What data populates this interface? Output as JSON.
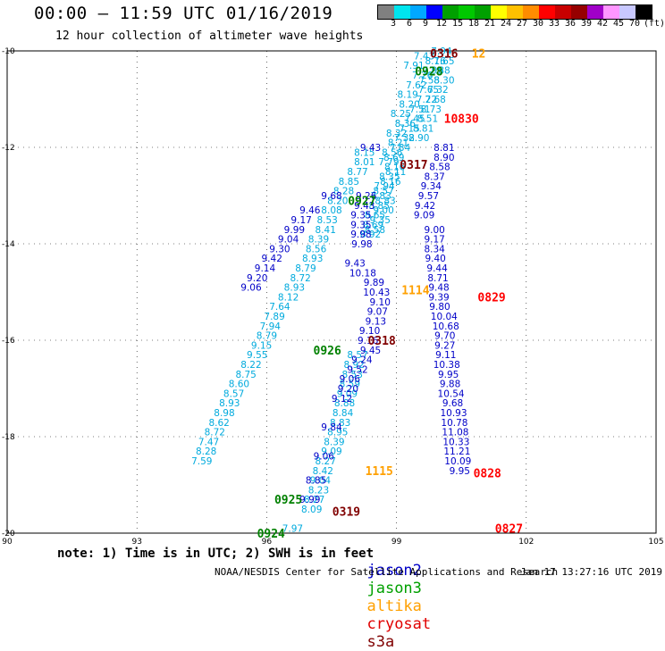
{
  "header": {
    "title": "00:00 – 11:59 UTC 01/16/2019",
    "subtitle": "12 hour collection of altimeter wave heights"
  },
  "colorbar": {
    "colors": [
      "#808080",
      "#00e5ee",
      "#00a8ff",
      "#0000ff",
      "#00a000",
      "#00c800",
      "#00a000",
      "#ffff00",
      "#ffc000",
      "#ff8c00",
      "#ff0000",
      "#c80000",
      "#960000",
      "#a000c8",
      "#ff96ff",
      "#c8c8ff",
      "#000000"
    ],
    "labels": [
      "3",
      "6",
      "9",
      "12",
      "15",
      "18",
      "21",
      "24",
      "27",
      "30",
      "33",
      "36",
      "39",
      "42",
      "45",
      "70",
      "(ft)"
    ]
  },
  "legend": {
    "note": "note: 1) Time is in UTC; 2) SWH is in feet",
    "satellites": [
      {
        "name": "jason2",
        "color": "#0000c8"
      },
      {
        "name": "jason3",
        "color": "#00a000"
      },
      {
        "name": "altika",
        "color": "#ffa000"
      },
      {
        "name": "cryosat",
        "color": "#e00000"
      },
      {
        "name": "s3a",
        "color": "#800000"
      }
    ]
  },
  "footer": {
    "credit": "NOAA/NESDIS Center for Satellite Applications and Research",
    "timestamp": "Jan 17 13:27:16 UTC 2019"
  },
  "chart_data": {
    "type": "scatter",
    "xlim": [
      90,
      105
    ],
    "ylim": [
      -20,
      -10
    ],
    "xticks": [
      90,
      93,
      96,
      99,
      102,
      105
    ],
    "yticks": [
      -10,
      -12,
      -14,
      -16,
      -18,
      -20
    ],
    "xtick_labels": [
      "90",
      "93",
      "96",
      "99",
      "102",
      "105"
    ],
    "ytick_labels": [
      "-10",
      "-12",
      "-14",
      "-16",
      "-18",
      "-20"
    ],
    "grid": "dotted",
    "colors": {
      "light": "#00aadd",
      "dark": "#0000c8",
      "jason3": "#008000",
      "altika": "#ffa000",
      "cryosat": "#ff0000",
      "s3a": "#800000"
    },
    "tracks": [
      {
        "name": "track-a",
        "color": "light",
        "x": [
          96.6,
          97.04,
          97.1,
          97.2,
          97.24,
          97.3,
          97.36,
          97.5,
          97.56,
          97.64,
          97.7,
          97.76,
          97.8,
          97.86,
          97.92,
          97.98,
          98.02,
          98.1
        ],
        "y": [
          -19.9,
          -19.5,
          -19.3,
          -19.1,
          -18.9,
          -18.7,
          -18.5,
          -18.3,
          -18.1,
          -17.9,
          -17.7,
          -17.5,
          -17.3,
          -17.1,
          -16.9,
          -16.7,
          -16.5,
          -16.3
        ],
        "values": [
          "7.97",
          "8.09",
          "8.27",
          "8.23",
          "9.04",
          "8.42",
          "8.27",
          "9.09",
          "8.39",
          "8.95",
          "8.83",
          "8.84",
          "8.88",
          "9.09",
          "8.59",
          "8.53",
          "8.92",
          "8.57"
        ]
      },
      {
        "name": "track-b",
        "color": "light",
        "x": [
          98.26,
          98.26,
          98.1,
          97.9,
          97.78,
          97.64,
          97.5,
          97.4,
          97.36,
          97.2,
          97.14,
          97.06,
          96.9,
          96.78,
          96.64,
          96.5,
          96.3,
          96.18,
          96.08,
          96.0,
          95.88,
          95.78,
          95.64,
          95.52,
          95.36,
          95.24,
          95.14,
          95.02,
          94.9,
          94.8,
          94.66,
          94.6,
          94.5
        ],
        "y": [
          -12.1,
          -12.3,
          -12.5,
          -12.7,
          -12.9,
          -13.1,
          -13.3,
          -13.5,
          -13.7,
          -13.9,
          -14.1,
          -14.3,
          -14.5,
          -14.7,
          -14.9,
          -15.1,
          -15.3,
          -15.5,
          -15.7,
          -15.9,
          -16.1,
          -16.3,
          -16.5,
          -16.7,
          -16.9,
          -17.1,
          -17.3,
          -17.5,
          -17.7,
          -17.9,
          -18.1,
          -18.3,
          -18.5
        ],
        "values": [
          "8.15",
          "8.01",
          "8.77",
          "8.85",
          "8.28",
          "8.20",
          "8.08",
          "8.53",
          "8.41",
          "8.39",
          "8.56",
          "8.93",
          "8.79",
          "8.72",
          "8.93",
          "8.12",
          "7.64",
          "7.89",
          "7.94",
          "8.79",
          "9.15",
          "9.55",
          "8.22",
          "8.75",
          "8.60",
          "8.57",
          "8.93",
          "8.98",
          "8.62",
          "8.72",
          "7.47",
          "8.28",
          "7.59"
        ]
      },
      {
        "name": "track-c",
        "color": "light",
        "x": [
          99.64,
          99.4,
          99.6,
          99.46,
          99.26,
          99.3,
          99.1,
          99.2,
          99.0,
          99.04,
          98.9,
          98.82,
          98.98,
          98.86,
          98.7,
          98.74,
          98.7,
          98.62,
          98.5
        ],
        "y": [
          -10.1,
          -10.3,
          -10.5,
          -10.7,
          -10.9,
          -11.1,
          -11.3,
          -11.5,
          -11.7,
          -11.9,
          -12.1,
          -12.3,
          -12.5,
          -12.7,
          -12.9,
          -13.1,
          -13.3,
          -13.5,
          -13.7
        ],
        "values": [
          "7.43",
          "7.91",
          "7.26",
          "7.62",
          "8.19",
          "8.20",
          "8.25",
          "8.36",
          "8.32",
          "8.21",
          "8.56",
          "7.79",
          "8.11",
          "8.16",
          "8.57",
          "8.83",
          "9.00",
          "9.35",
          "8.58"
        ]
      },
      {
        "name": "track-d",
        "color": "light",
        "x": [
          99.9,
          99.84,
          99.76,
          99.74,
          99.7,
          99.54,
          99.42,
          99.3,
          99.18,
          99.08,
          98.94,
          98.96,
          98.84,
          98.72,
          98.64,
          98.6,
          98.5,
          98.46,
          98.4
        ],
        "y": [
          -10.2,
          -10.4,
          -10.6,
          -10.8,
          -11.0,
          -11.2,
          -11.4,
          -11.6,
          -11.8,
          -12.0,
          -12.2,
          -12.4,
          -12.6,
          -12.8,
          -13.0,
          -13.2,
          -13.4,
          -13.6,
          -13.8
        ],
        "values": [
          "8.16",
          "7.95",
          "7.58",
          "7.65",
          "7.22",
          "7.51",
          "7.45",
          "7.15",
          "7.32",
          "7.84",
          "8.69",
          "8.16",
          "8.35",
          "7.94",
          "7.83",
          "8.85",
          "8.65",
          "8.69",
          "8.92"
        ]
      },
      {
        "name": "track-e",
        "color": "light",
        "x": [
          100.04,
          100.1,
          100.0,
          100.1,
          99.96,
          99.9,
          99.8,
          99.72,
          99.62,
          99.52
        ],
        "y": [
          -10.0,
          -10.2,
          -10.4,
          -10.6,
          -10.8,
          -11.0,
          -11.2,
          -11.4,
          -11.6,
          -11.8
        ],
        "values": [
          "7.94",
          "7.65",
          "7.88",
          "8.30",
          "7.32",
          "7.68",
          "8.73",
          "8.51",
          "8.81",
          "8.90"
        ]
      },
      {
        "name": "track-f",
        "color": "dark",
        "x": [
          100.1,
          100.1,
          100.0,
          99.88,
          99.8,
          99.74,
          99.66,
          99.64
        ],
        "y": [
          -12.0,
          -12.2,
          -12.4,
          -12.6,
          -12.8,
          -13.0,
          -13.2,
          -13.4
        ],
        "values": [
          "8.81",
          "8.90",
          "8.58",
          "8.37",
          "9.34",
          "9.57",
          "9.42",
          "9.09"
        ]
      },
      {
        "name": "track-g",
        "color": "dark",
        "x": [
          99.88,
          99.88,
          99.88,
          99.9,
          99.94,
          99.96,
          99.98,
          99.98,
          100.0,
          100.1,
          100.14,
          100.12,
          100.12,
          100.14,
          100.16,
          100.2,
          100.24,
          100.26,
          100.3,
          100.32,
          100.34,
          100.36,
          100.38,
          100.4,
          100.42,
          100.46
        ],
        "y": [
          -13.7,
          -13.9,
          -14.1,
          -14.3,
          -14.5,
          -14.7,
          -14.9,
          -15.1,
          -15.3,
          -15.5,
          -15.7,
          -15.9,
          -16.1,
          -16.3,
          -16.5,
          -16.7,
          -16.9,
          -17.1,
          -17.3,
          -17.5,
          -17.7,
          -17.9,
          -18.1,
          -18.3,
          -18.5,
          -18.7
        ],
        "values": [
          "9.00",
          "9.17",
          "8.34",
          "9.40",
          "9.44",
          "8.71",
          "9.48",
          "9.39",
          "9.80",
          "10.04",
          "10.68",
          "9.70",
          "9.27",
          "9.11",
          "10.38",
          "9.95",
          "9.88",
          "10.54",
          "9.68",
          "10.93",
          "10.78",
          "11.08",
          "10.33",
          "11.21",
          "10.09",
          "9.95"
        ]
      },
      {
        "name": "track-h",
        "color": "dark",
        "x": [
          97.5,
          97.0,
          96.8,
          96.64,
          96.5,
          96.3,
          96.12,
          95.96,
          95.78,
          95.64
        ],
        "y": [
          -13.0,
          -13.3,
          -13.5,
          -13.7,
          -13.9,
          -14.1,
          -14.3,
          -14.5,
          -14.7,
          -14.9
        ],
        "values": [
          "9.68",
          "9.46",
          "9.17",
          "9.99",
          "9.04",
          "9.30",
          "9.42",
          "9.14",
          "9.20",
          "9.06"
        ]
      },
      {
        "name": "track-i",
        "color": "dark",
        "x": [
          98.4,
          98.3,
          98.26,
          98.18,
          98.18,
          98.18,
          98.2
        ],
        "y": [
          -12.0,
          -13.0,
          -13.2,
          -13.4,
          -13.6,
          -13.8,
          -14.0
        ],
        "values": [
          "9.43",
          "9.26",
          "9.43",
          "9.35",
          "9.35",
          "9.98",
          "9.98"
        ]
      },
      {
        "name": "track-j",
        "color": "dark",
        "x": [
          98.04,
          98.22,
          98.48,
          98.54,
          98.62,
          98.56,
          98.52,
          98.38,
          98.34,
          98.4,
          98.2,
          98.1,
          97.92,
          97.88,
          97.74
        ],
        "y": [
          -14.4,
          -14.6,
          -14.8,
          -15.0,
          -15.2,
          -15.4,
          -15.6,
          -15.8,
          -16.0,
          -16.2,
          -16.4,
          -16.6,
          -16.8,
          -17.0,
          -17.2
        ],
        "values": [
          "9.43",
          "10.18",
          "9.89",
          "10.43",
          "9.10",
          "9.07",
          "9.13",
          "9.10",
          "9.16",
          "9.45",
          "9.24",
          "9.52",
          "9.06",
          "9.20",
          "9.12"
        ]
      },
      {
        "name": "track-k",
        "color": "dark",
        "x": [
          97.5,
          97.32,
          97.14,
          97.0
        ],
        "y": [
          -17.8,
          -18.4,
          -18.9,
          -19.3
        ],
        "values": [
          "9.84",
          "9.06",
          "8.85",
          "9.99"
        ]
      }
    ],
    "time_labels": [
      {
        "x": 100.1,
        "y": -10.05,
        "text": "0316",
        "sat": "s3a"
      },
      {
        "x": 100.9,
        "y": -10.05,
        "text": "12",
        "sat": "altika"
      },
      {
        "x": 99.75,
        "y": -10.42,
        "text": "0928",
        "sat": "jason3"
      },
      {
        "x": 100.5,
        "y": -11.4,
        "text": "10830",
        "sat": "cryosat"
      },
      {
        "x": 99.4,
        "y": -12.35,
        "text": "0317",
        "sat": "s3a"
      },
      {
        "x": 98.2,
        "y": -13.1,
        "text": "0927",
        "sat": "jason3"
      },
      {
        "x": 99.44,
        "y": -14.95,
        "text": "1114",
        "sat": "altika"
      },
      {
        "x": 101.2,
        "y": -15.1,
        "text": "0829",
        "sat": "cryosat"
      },
      {
        "x": 98.66,
        "y": -16.0,
        "text": "0318",
        "sat": "s3a"
      },
      {
        "x": 97.4,
        "y": -16.2,
        "text": "0926",
        "sat": "jason3"
      },
      {
        "x": 98.6,
        "y": -18.7,
        "text": "1115",
        "sat": "altika"
      },
      {
        "x": 101.1,
        "y": -18.75,
        "text": "0828",
        "sat": "cryosat"
      },
      {
        "x": 96.5,
        "y": -19.3,
        "text": "0925",
        "sat": "jason3"
      },
      {
        "x": 97.84,
        "y": -19.55,
        "text": "0319",
        "sat": "s3a"
      },
      {
        "x": 101.6,
        "y": -19.9,
        "text": "0827",
        "sat": "cryosat"
      },
      {
        "x": 96.1,
        "y": -20.0,
        "text": "0924",
        "sat": "jason3"
      }
    ]
  }
}
